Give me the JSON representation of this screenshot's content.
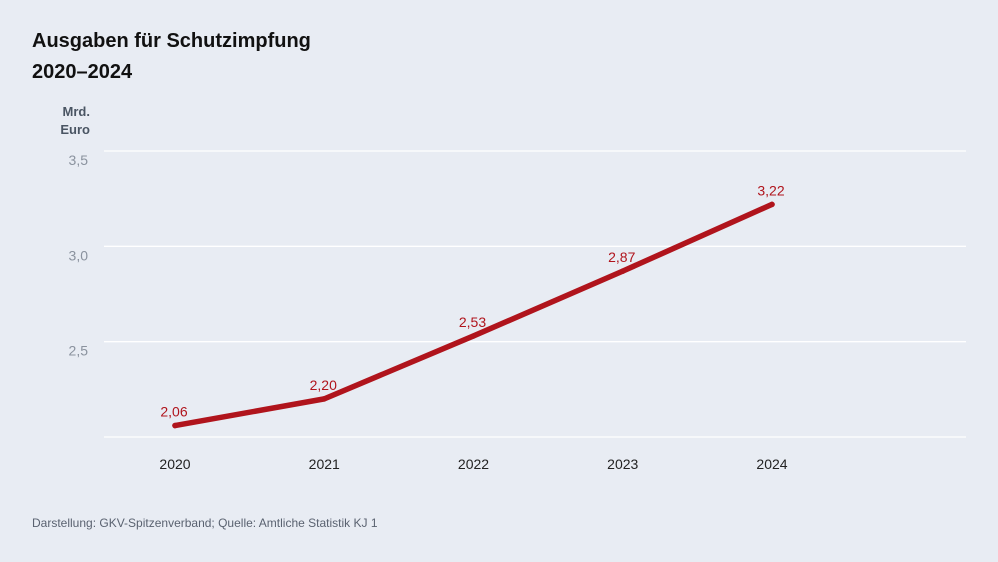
{
  "title": {
    "line1": "Ausgaben für Schutzimpfung",
    "line2": "2020–2024"
  },
  "unit": {
    "line1": "Mrd.",
    "line2": "Euro"
  },
  "source": "Darstellung: GKV-Spitzenverband; Quelle: Amtliche Statistik KJ 1",
  "colors": {
    "background": "#e8ecf3",
    "line": "#b0141c",
    "grid": "#ffffff",
    "tick_label": "#8a929e"
  },
  "chart_data": {
    "type": "line",
    "title": "Ausgaben für Schutzimpfung 2020–2024",
    "ylabel": "Mrd. Euro",
    "xlabel": "",
    "x": [
      "2020",
      "2021",
      "2022",
      "2023",
      "2024"
    ],
    "values": [
      2.06,
      2.2,
      2.53,
      2.87,
      3.22
    ],
    "data_labels": [
      "2,06",
      "2,20",
      "2,53",
      "2,87",
      "3,22"
    ],
    "ylim": [
      2.0,
      3.5
    ],
    "y_ticks": [
      {
        "value": 2.5,
        "label": "2,5"
      },
      {
        "value": 3.0,
        "label": "3,0"
      },
      {
        "value": 3.5,
        "label": "3,5"
      }
    ],
    "grid": true,
    "legend": "none"
  }
}
